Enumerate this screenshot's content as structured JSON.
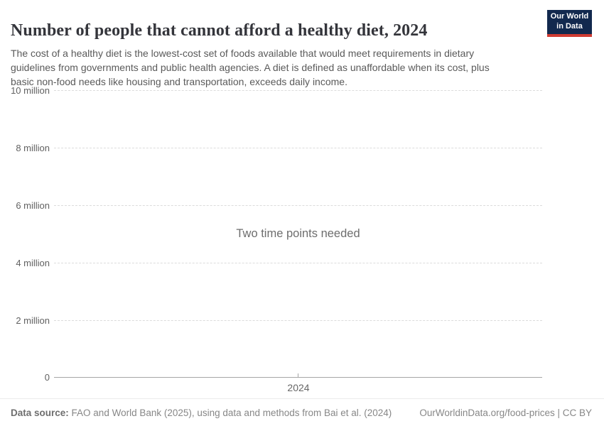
{
  "header": {
    "title": "Number of people that cannot afford a healthy diet, 2024",
    "subtitle": "The cost of a healthy diet is the lowest-cost set of foods available that would meet requirements in dietary guidelines from governments and public health agencies. A diet is defined as unaffordable when its cost, plus basic non-food needs like housing and transportation, exceeds daily income.",
    "logo_text": "Our World\nin Data"
  },
  "chart_data": {
    "type": "line",
    "title": "Number of people that cannot afford a healthy diet, 2024",
    "series": [],
    "empty_message": "Two time points needed",
    "x": [
      2024
    ],
    "xtick_labels": [
      "2024"
    ],
    "ytick_labels": [
      "10 million",
      "8 million",
      "6 million",
      "4 million",
      "2 million",
      "0"
    ],
    "ytick_values": [
      10000000,
      8000000,
      6000000,
      4000000,
      2000000,
      0
    ],
    "ylim": [
      0,
      10000000
    ],
    "grid": "horizontal-dashed",
    "legend_position": "none"
  },
  "footer": {
    "datasource_label": "Data source:",
    "datasource_text": "FAO and World Bank (2025), using data and methods from Bai et al. (2024)",
    "attribution": "OurWorldinData.org/food-prices | CC BY"
  },
  "colors": {
    "logo_background": "#12294e",
    "logo_accent": "#cf3b32",
    "title_text": "#34353b",
    "subtitle_text": "#5a5a5a",
    "axis_label_text": "#616161",
    "gridline": "#dcdcdc",
    "axis_line": "#a5a5a5",
    "footer_text": "#878787"
  }
}
